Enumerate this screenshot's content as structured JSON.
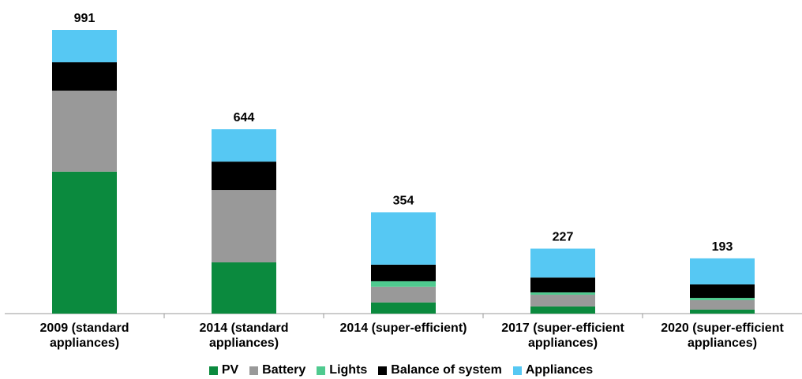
{
  "chart_data": {
    "type": "stacked_bar",
    "categories": [
      "2009 (standard appliances)",
      "2014 (standard appliances)",
      "2014 (super-efficient)",
      "2017 (super-efficient appliances)",
      "2020 (super-efficient appliances)"
    ],
    "series": [
      {
        "name": "PV",
        "color": "#0b8a3e",
        "values": [
          496,
          179,
          39,
          25,
          14
        ]
      },
      {
        "name": "Battery",
        "color": "#999999",
        "values": [
          283,
          253,
          55,
          41,
          33
        ]
      },
      {
        "name": "Lights",
        "color": "#4fca8f",
        "values": [
          0,
          0,
          19,
          8,
          8
        ]
      },
      {
        "name": "Balance of system",
        "color": "#000000",
        "values": [
          99,
          99,
          58,
          52,
          47
        ]
      },
      {
        "name": "Appliances",
        "color": "#56c8f3",
        "values": [
          113,
          113,
          183,
          101,
          91
        ]
      }
    ],
    "totals": [
      991,
      644,
      354,
      227,
      193
    ],
    "legend": "bottom"
  }
}
